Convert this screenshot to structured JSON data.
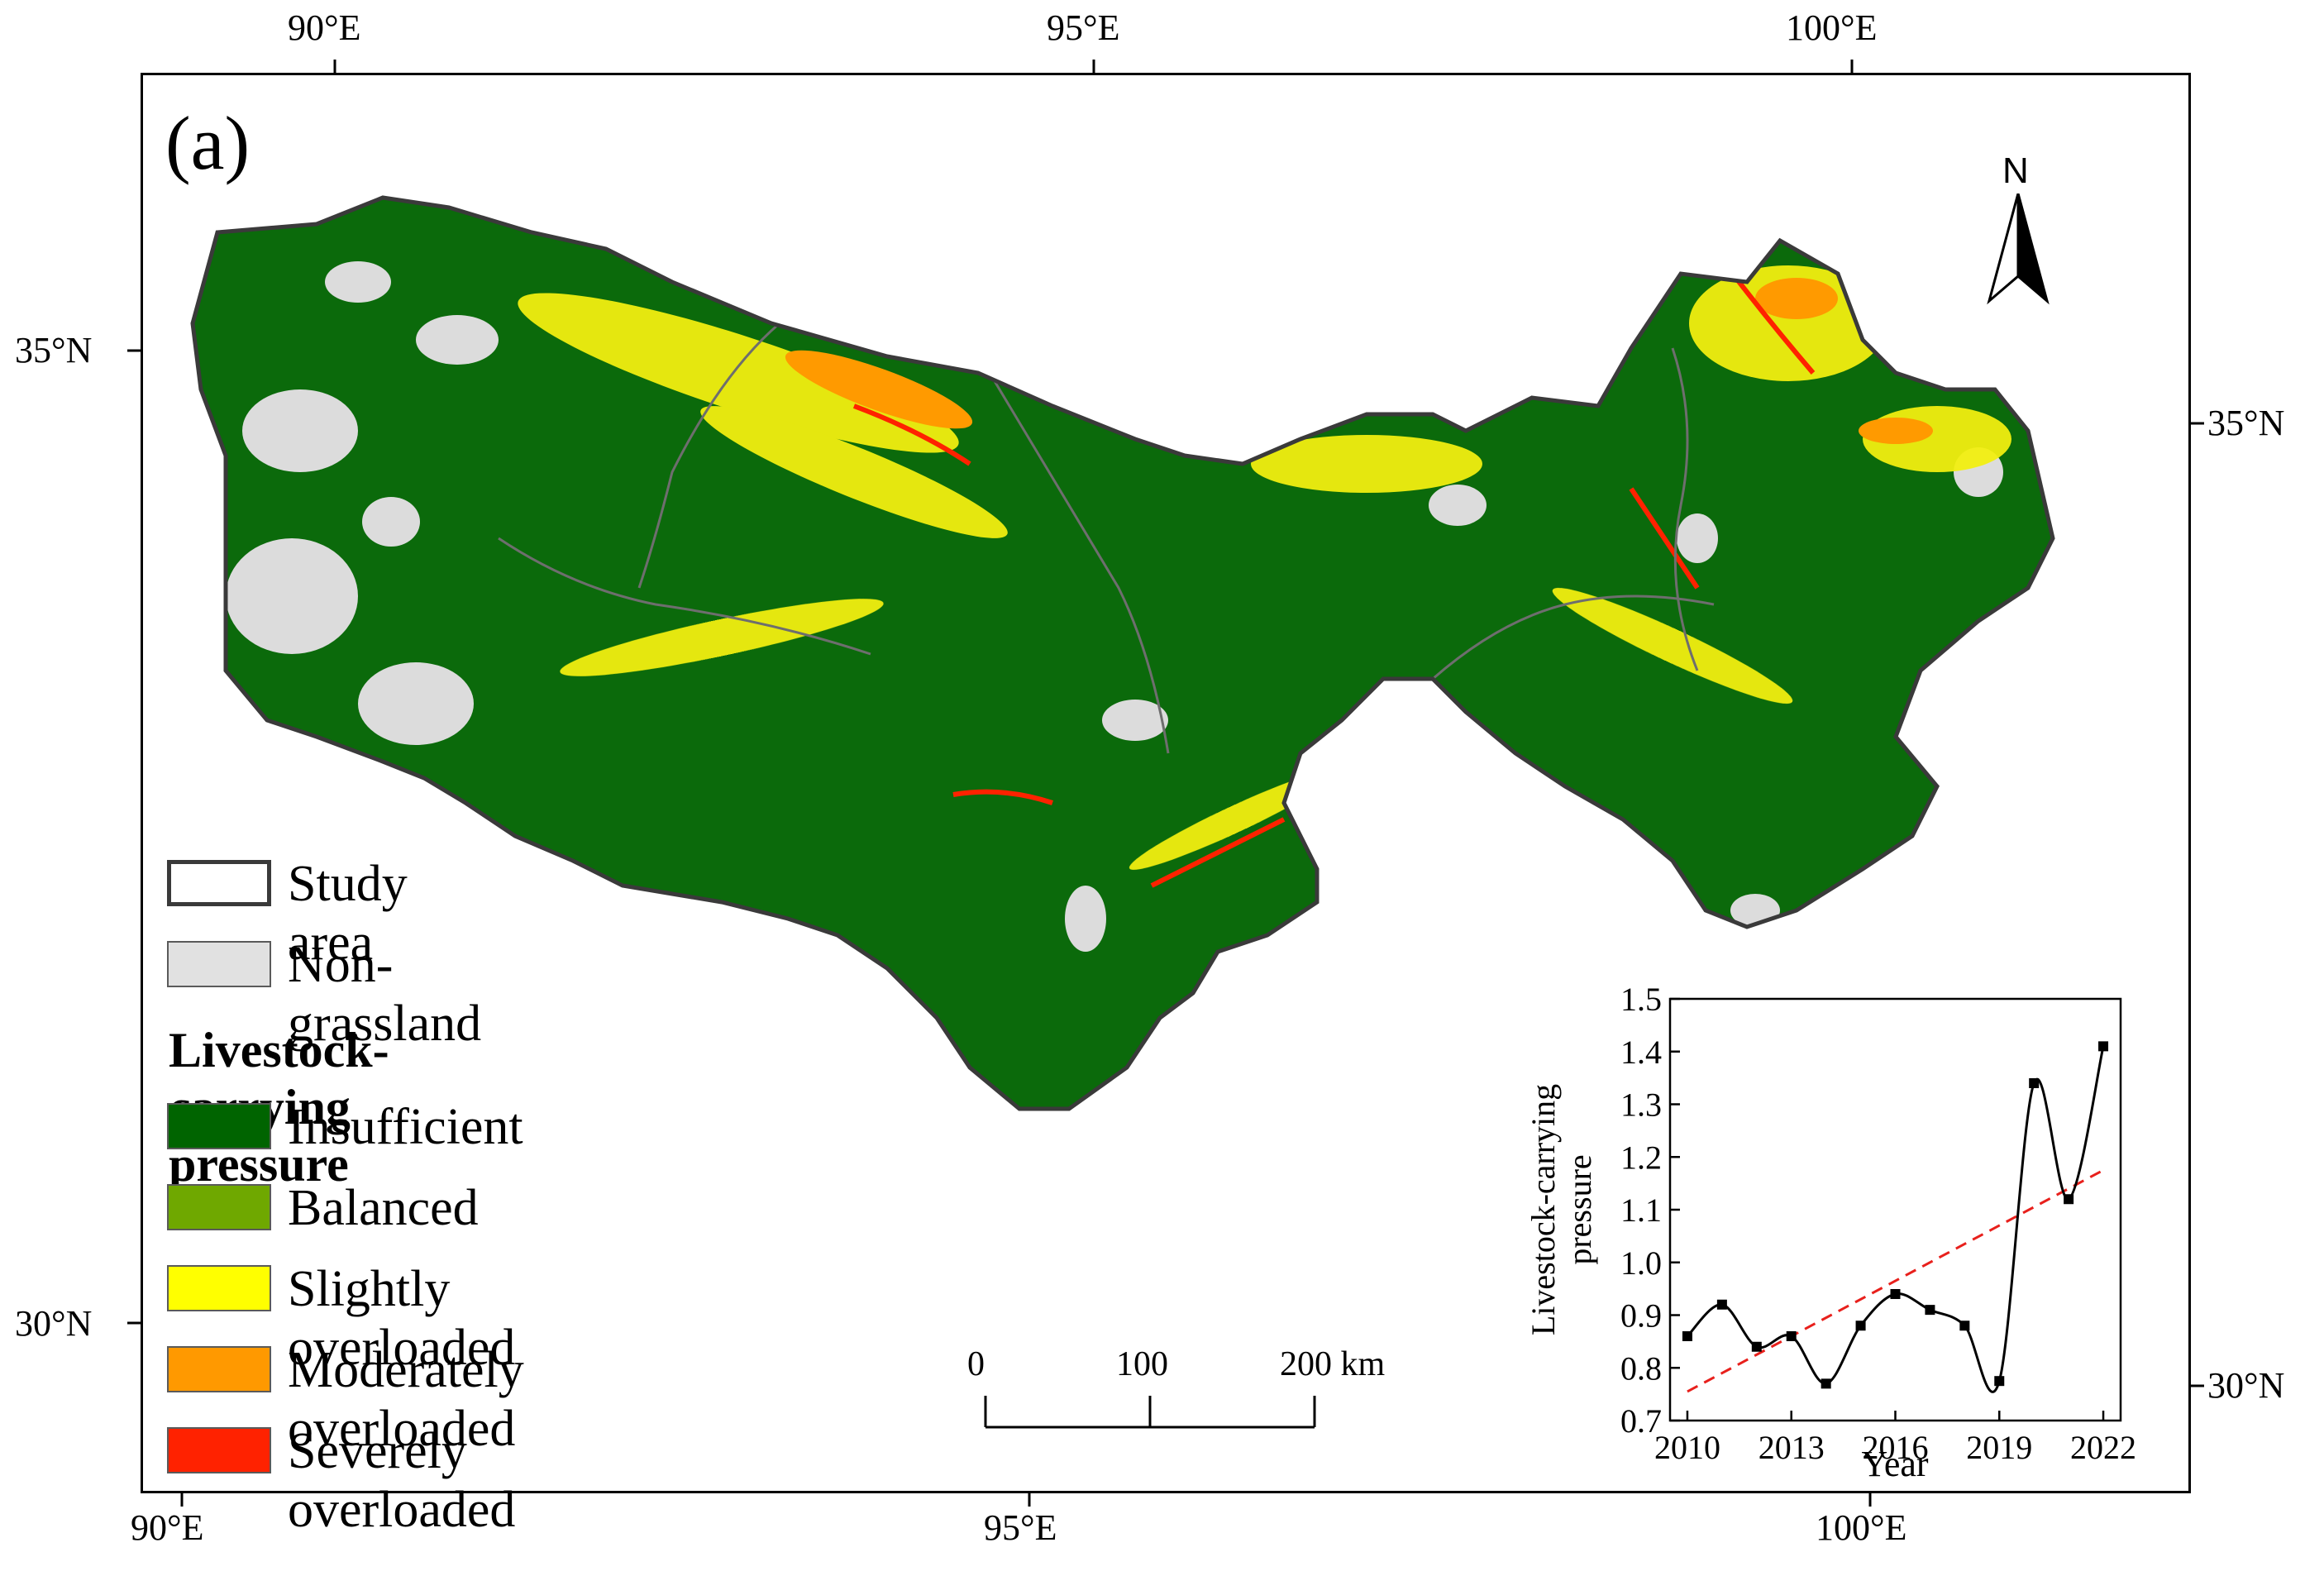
{
  "panel_label": "(a)",
  "axes": {
    "top": [
      "90°E",
      "95°E",
      "100°E"
    ],
    "bottom": [
      "90°E",
      "95°E",
      "100°E"
    ],
    "left": [
      "35°N",
      "30°N"
    ],
    "right": [
      "35°N",
      "30°N"
    ]
  },
  "north_arrow": {
    "label": "N"
  },
  "legend": {
    "study_area": "Study area",
    "non_grassland": "Non-grassland",
    "title": "Livestock-carrying pressure",
    "classes": [
      {
        "label": "Insufficient",
        "color": "#006400"
      },
      {
        "label": "Balanced",
        "color": "#6fa800"
      },
      {
        "label": "Slightly overloaded",
        "color": "#ffff00"
      },
      {
        "label": "Moderately overloaded",
        "color": "#ff9900"
      },
      {
        "label": "Severely overloaded",
        "color": "#ff2200"
      }
    ],
    "colors": {
      "study_area": "#ffffff",
      "non_grassland": "#e1e1e1"
    }
  },
  "scale_bar": {
    "ticks": [
      "0",
      "100",
      "200 km"
    ]
  },
  "chart_data": {
    "type": "line",
    "title": "",
    "xlabel": "Year",
    "ylabel": "Livestock-carrying pressure",
    "x": [
      2010,
      2011,
      2012,
      2013,
      2014,
      2015,
      2016,
      2017,
      2018,
      2019,
      2020,
      2021,
      2022
    ],
    "values": [
      0.86,
      0.92,
      0.84,
      0.86,
      0.77,
      0.88,
      0.94,
      0.91,
      0.88,
      0.775,
      1.34,
      1.12,
      1.41
    ],
    "xticks": [
      "2010",
      "2013",
      "2016",
      "2019",
      "2022"
    ],
    "yticks": [
      "0.7",
      "0.8",
      "0.9",
      "1.0",
      "1.1",
      "1.2",
      "1.3",
      "1.4",
      "1.5"
    ],
    "xlim": [
      2009.5,
      2022.5
    ],
    "ylim": [
      0.7,
      1.5
    ],
    "trend": {
      "start": 0.755,
      "end": 1.175,
      "color": "#e8201c"
    }
  }
}
